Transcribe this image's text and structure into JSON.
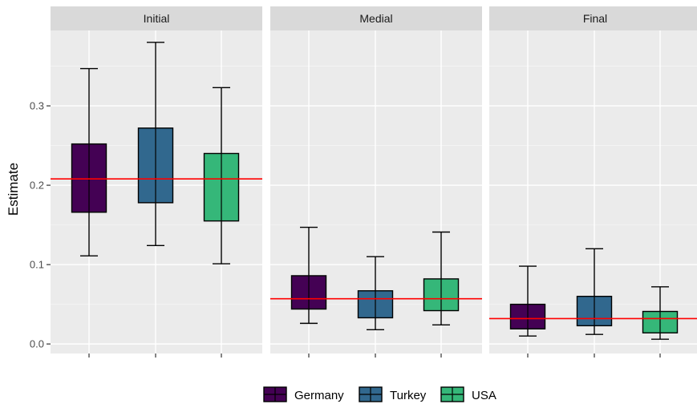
{
  "chart_data": {
    "type": "boxplot",
    "ylabel": "Estimate",
    "xlabel": "",
    "ylim": [
      -0.012,
      0.395
    ],
    "yticks": [
      0.0,
      0.1,
      0.2,
      0.3
    ],
    "ytick_labels": [
      "0.0",
      "0.1",
      "0.2",
      "0.3"
    ],
    "grid": true,
    "legend": {
      "position": "bottom",
      "entries": [
        "Germany",
        "Turkey",
        "USA"
      ]
    },
    "groups": [
      "Germany",
      "Turkey",
      "USA"
    ],
    "colors": {
      "Germany": "#440154",
      "Turkey": "#31688e",
      "USA": "#35b779",
      "reference_line": "#ff0000",
      "panel_bg": "#ebebeb",
      "strip_bg": "#d9d9d9"
    },
    "facets": [
      {
        "name": "Initial",
        "reference_line": 0.208,
        "boxes": [
          {
            "group": "Germany",
            "whisker_low": 0.111,
            "q1": 0.166,
            "median": 0.208,
            "q3": 0.252,
            "whisker_high": 0.347
          },
          {
            "group": "Turkey",
            "whisker_low": 0.124,
            "q1": 0.178,
            "median": 0.208,
            "q3": 0.272,
            "whisker_high": 0.38
          },
          {
            "group": "USA",
            "whisker_low": 0.101,
            "q1": 0.155,
            "median": 0.208,
            "q3": 0.24,
            "whisker_high": 0.323
          }
        ]
      },
      {
        "name": "Medial",
        "reference_line": 0.057,
        "boxes": [
          {
            "group": "Germany",
            "whisker_low": 0.026,
            "q1": 0.044,
            "median": 0.057,
            "q3": 0.086,
            "whisker_high": 0.147
          },
          {
            "group": "Turkey",
            "whisker_low": 0.018,
            "q1": 0.033,
            "median": 0.057,
            "q3": 0.067,
            "whisker_high": 0.11
          },
          {
            "group": "USA",
            "whisker_low": 0.024,
            "q1": 0.042,
            "median": 0.057,
            "q3": 0.082,
            "whisker_high": 0.141
          }
        ]
      },
      {
        "name": "Final",
        "reference_line": 0.032,
        "boxes": [
          {
            "group": "Germany",
            "whisker_low": 0.01,
            "q1": 0.019,
            "median": 0.032,
            "q3": 0.05,
            "whisker_high": 0.098
          },
          {
            "group": "Turkey",
            "whisker_low": 0.012,
            "q1": 0.023,
            "median": 0.032,
            "q3": 0.06,
            "whisker_high": 0.12
          },
          {
            "group": "USA",
            "whisker_low": 0.006,
            "q1": 0.014,
            "median": 0.032,
            "q3": 0.041,
            "whisker_high": 0.072
          }
        ]
      }
    ]
  }
}
